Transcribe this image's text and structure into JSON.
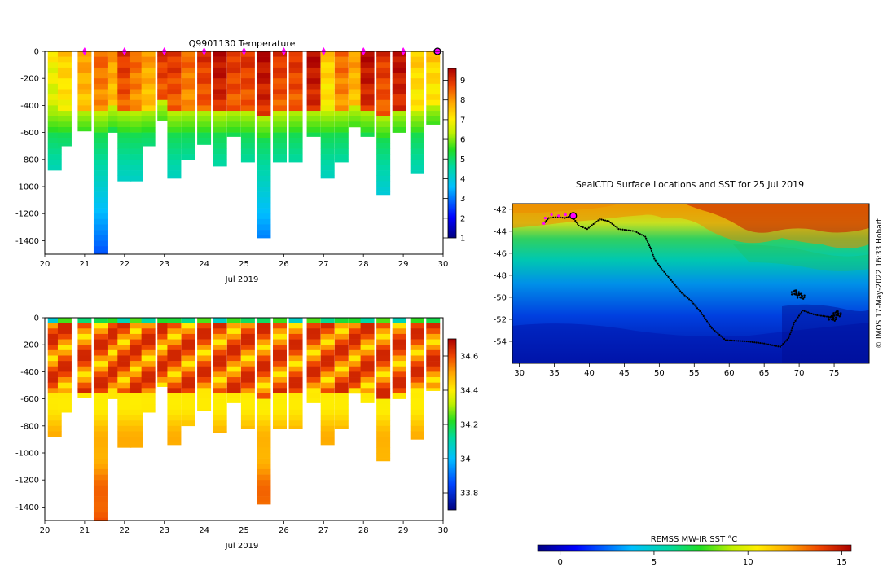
{
  "chart_data": [
    {
      "id": "temperature",
      "type": "heatmap",
      "title": "Q9901130  Temperature",
      "xlabel": "Jul 2019",
      "xlim": [
        20,
        30
      ],
      "ylim": [
        -1500,
        0
      ],
      "xticks": [
        20,
        21,
        22,
        23,
        24,
        25,
        26,
        27,
        28,
        29,
        30
      ],
      "yticks": [
        0,
        -200,
        -400,
        -600,
        -800,
        -1000,
        -1200,
        -1400
      ],
      "profiles": [
        {
          "day": 20.25,
          "maxdepth": 880,
          "surface": 7,
          "thermo": 550
        },
        {
          "day": 20.5,
          "maxdepth": 700,
          "surface": 7.5,
          "thermo": 560
        },
        {
          "day": 21.0,
          "maxdepth": 590,
          "surface": 8,
          "thermo": 560
        },
        {
          "day": 21.4,
          "maxdepth": 1500,
          "surface": 8.5,
          "thermo": 580
        },
        {
          "day": 21.75,
          "maxdepth": 600,
          "surface": 8,
          "thermo": 540
        },
        {
          "day": 22.0,
          "maxdepth": 960,
          "surface": 9,
          "thermo": 560
        },
        {
          "day": 22.3,
          "maxdepth": 960,
          "surface": 8.5,
          "thermo": 570
        },
        {
          "day": 22.6,
          "maxdepth": 700,
          "surface": 8,
          "thermo": 550
        },
        {
          "day": 23.0,
          "maxdepth": 510,
          "surface": 9,
          "thermo": 500
        },
        {
          "day": 23.25,
          "maxdepth": 940,
          "surface": 9,
          "thermo": 570
        },
        {
          "day": 23.6,
          "maxdepth": 800,
          "surface": 8.5,
          "thermo": 560
        },
        {
          "day": 24.0,
          "maxdepth": 690,
          "surface": 9,
          "thermo": 560
        },
        {
          "day": 24.4,
          "maxdepth": 850,
          "surface": 9.5,
          "thermo": 580
        },
        {
          "day": 24.75,
          "maxdepth": 630,
          "surface": 9,
          "thermo": 560
        },
        {
          "day": 25.1,
          "maxdepth": 820,
          "surface": 9,
          "thermo": 570
        },
        {
          "day": 25.5,
          "maxdepth": 1380,
          "surface": 9.5,
          "thermo": 600
        },
        {
          "day": 25.9,
          "maxdepth": 820,
          "surface": 9,
          "thermo": 580
        },
        {
          "day": 26.3,
          "maxdepth": 820,
          "surface": 9,
          "thermo": 560
        },
        {
          "day": 26.75,
          "maxdepth": 630,
          "surface": 9.5,
          "thermo": 560
        },
        {
          "day": 27.1,
          "maxdepth": 940,
          "surface": 7.5,
          "thermo": 570
        },
        {
          "day": 27.45,
          "maxdepth": 820,
          "surface": 8.5,
          "thermo": 560
        },
        {
          "day": 27.8,
          "maxdepth": 560,
          "surface": 8,
          "thermo": 540
        },
        {
          "day": 28.1,
          "maxdepth": 630,
          "surface": 9.5,
          "thermo": 560
        },
        {
          "day": 28.5,
          "maxdepth": 1060,
          "surface": 9,
          "thermo": 600
        },
        {
          "day": 28.9,
          "maxdepth": 600,
          "surface": 9.5,
          "thermo": 560
        },
        {
          "day": 29.35,
          "maxdepth": 900,
          "surface": 7.5,
          "thermo": 570
        },
        {
          "day": 29.75,
          "maxdepth": 540,
          "surface": 7.5,
          "thermo": 520
        }
      ],
      "markers": [
        21,
        22,
        23,
        24,
        25,
        26,
        27,
        28,
        29
      ],
      "current_marker": 30,
      "colorbar": {
        "ticks": [
          1,
          2,
          3,
          4,
          5,
          6,
          7,
          8,
          9
        ],
        "range": [
          1,
          9.6
        ]
      }
    },
    {
      "id": "salinity",
      "type": "heatmap",
      "title": "",
      "xlabel": "Jul 2019",
      "xlim": [
        20,
        30
      ],
      "ylim": [
        -1500,
        0
      ],
      "xticks": [
        20,
        21,
        22,
        23,
        24,
        25,
        26,
        27,
        28,
        29,
        30
      ],
      "yticks": [
        0,
        -200,
        -400,
        -600,
        -800,
        -1000,
        -1200,
        -1400
      ],
      "colorbar": {
        "ticks": [
          33.8,
          34,
          34.2,
          34.4,
          34.6
        ],
        "range": [
          33.7,
          34.7
        ]
      }
    },
    {
      "id": "map",
      "type": "heatmap",
      "title": "SealCTD Surface Locations and SST for 25 Jul 2019",
      "xlim": [
        29,
        80
      ],
      "ylim": [
        -56,
        -41.5
      ],
      "xticks": [
        30,
        35,
        40,
        45,
        50,
        55,
        60,
        65,
        70,
        75
      ],
      "yticks": [
        -42,
        -44,
        -46,
        -48,
        -50,
        -52,
        -54
      ],
      "track": [
        [
          33.5,
          -43.3
        ],
        [
          34.2,
          -42.8
        ],
        [
          35.5,
          -42.7
        ],
        [
          36.5,
          -42.8
        ],
        [
          37.5,
          -42.6
        ],
        [
          38.5,
          -43.5
        ],
        [
          39.7,
          -43.8
        ],
        [
          41.5,
          -42.9
        ],
        [
          42.8,
          -43.1
        ],
        [
          44.2,
          -43.8
        ],
        [
          46.5,
          -44.0
        ],
        [
          48.0,
          -44.5
        ],
        [
          48.8,
          -45.6
        ],
        [
          49.3,
          -46.5
        ],
        [
          50.3,
          -47.4
        ],
        [
          51.5,
          -48.3
        ],
        [
          53.2,
          -49.6
        ],
        [
          54.5,
          -50.3
        ],
        [
          56.0,
          -51.4
        ],
        [
          57.5,
          -52.8
        ],
        [
          59.5,
          -53.9
        ],
        [
          62.5,
          -54.0
        ],
        [
          65.0,
          -54.2
        ],
        [
          67.3,
          -54.5
        ],
        [
          68.5,
          -53.7
        ],
        [
          69.3,
          -52.3
        ],
        [
          70.5,
          -51.2
        ],
        [
          72.3,
          -51.6
        ],
        [
          74.5,
          -51.8
        ],
        [
          75.8,
          -51.5
        ]
      ],
      "purple_track": [
        [
          33.5,
          -43.3
        ],
        [
          33.7,
          -42.8
        ],
        [
          34.6,
          -42.5
        ],
        [
          35.6,
          -42.6
        ],
        [
          36.6,
          -42.5
        ],
        [
          37.3,
          -42.6
        ]
      ],
      "current_position": [
        37.7,
        -42.6
      ],
      "side_label": "© IMOS 17-May-2022 16:33 Hobart"
    },
    {
      "id": "sst_colorbar",
      "type": "heatmap",
      "title": "REMSS MW-IR SST °C",
      "range": [
        -1.2,
        15.5
      ],
      "ticks": [
        0,
        5,
        10,
        15
      ]
    }
  ],
  "colors": {
    "marker": "#ff00ff",
    "track": "#000000"
  }
}
